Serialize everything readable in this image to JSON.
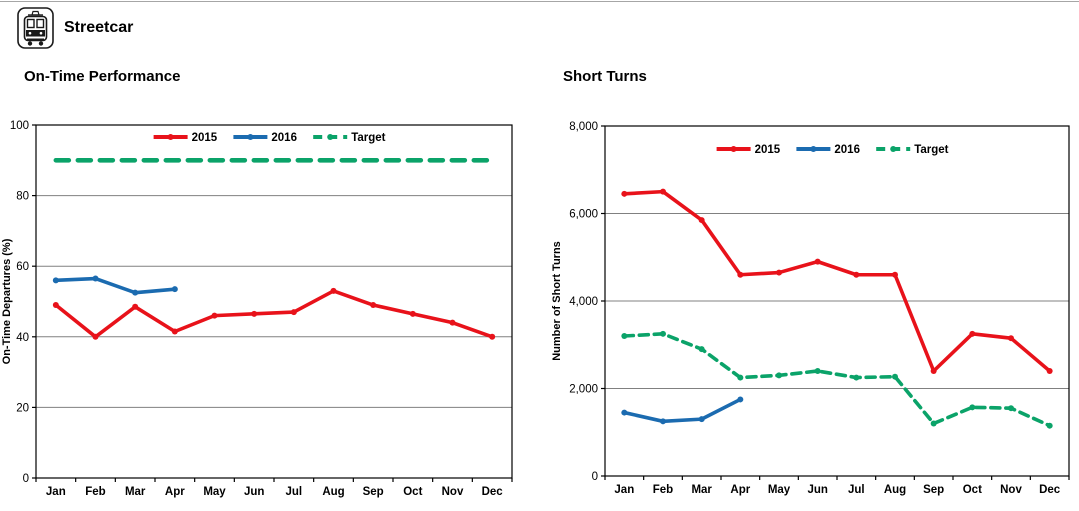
{
  "header": {
    "title": "Streetcar",
    "icon": "streetcar-icon"
  },
  "colors": {
    "series_2015": "#e8121a",
    "series_2016": "#1b6bb0",
    "target": "#0ba369",
    "gridline": "#808080",
    "axis": "#000000",
    "text": "#000000",
    "top_rule": "#a6a6a6"
  },
  "chart_data": [
    {
      "id": "on-time-performance",
      "type": "line",
      "title": "On-Time Performance",
      "xlabel": "",
      "ylabel": "On-Time Departures (%)",
      "ylim": [
        0,
        100
      ],
      "ytick_step": 20,
      "ytick_format": "plain",
      "grid": "horizontal",
      "legend_position": "top-center",
      "categories": [
        "Jan",
        "Feb",
        "Mar",
        "Apr",
        "May",
        "Jun",
        "Jul",
        "Aug",
        "Sep",
        "Oct",
        "Nov",
        "Dec"
      ],
      "series": [
        {
          "name": "2015",
          "color": "#e8121a",
          "dashed": false,
          "markers": true,
          "values": [
            49,
            40,
            48.5,
            41.5,
            46,
            46.5,
            47,
            53,
            49,
            46.5,
            44,
            40
          ]
        },
        {
          "name": "2016",
          "color": "#1b6bb0",
          "dashed": false,
          "markers": true,
          "values": [
            56,
            56.5,
            52.5,
            53.5
          ]
        },
        {
          "name": "Target",
          "color": "#0ba369",
          "dashed": true,
          "markers": false,
          "values": [
            90,
            90,
            90,
            90,
            90,
            90,
            90,
            90,
            90,
            90,
            90,
            90
          ]
        }
      ]
    },
    {
      "id": "short-turns",
      "type": "line",
      "title": "Short Turns",
      "xlabel": "",
      "ylabel": "Number of Short Turns",
      "ylim": [
        0,
        8000
      ],
      "ytick_step": 2000,
      "ytick_format": "thousands",
      "grid": "horizontal",
      "legend_position": "top-center",
      "categories": [
        "Jan",
        "Feb",
        "Mar",
        "Apr",
        "May",
        "Jun",
        "Jul",
        "Aug",
        "Sep",
        "Oct",
        "Nov",
        "Dec"
      ],
      "series": [
        {
          "name": "2015",
          "color": "#e8121a",
          "dashed": false,
          "markers": true,
          "values": [
            6450,
            6500,
            5850,
            4600,
            4650,
            4900,
            4600,
            4600,
            2400,
            3250,
            3150,
            2400
          ]
        },
        {
          "name": "2016",
          "color": "#1b6bb0",
          "dashed": false,
          "markers": true,
          "values": [
            1450,
            1250,
            1300,
            1750
          ]
        },
        {
          "name": "Target",
          "color": "#0ba369",
          "dashed": true,
          "markers": true,
          "values": [
            3200,
            3250,
            2900,
            2250,
            2300,
            2400,
            2250,
            2270,
            1200,
            1570,
            1550,
            1150
          ]
        }
      ]
    }
  ]
}
